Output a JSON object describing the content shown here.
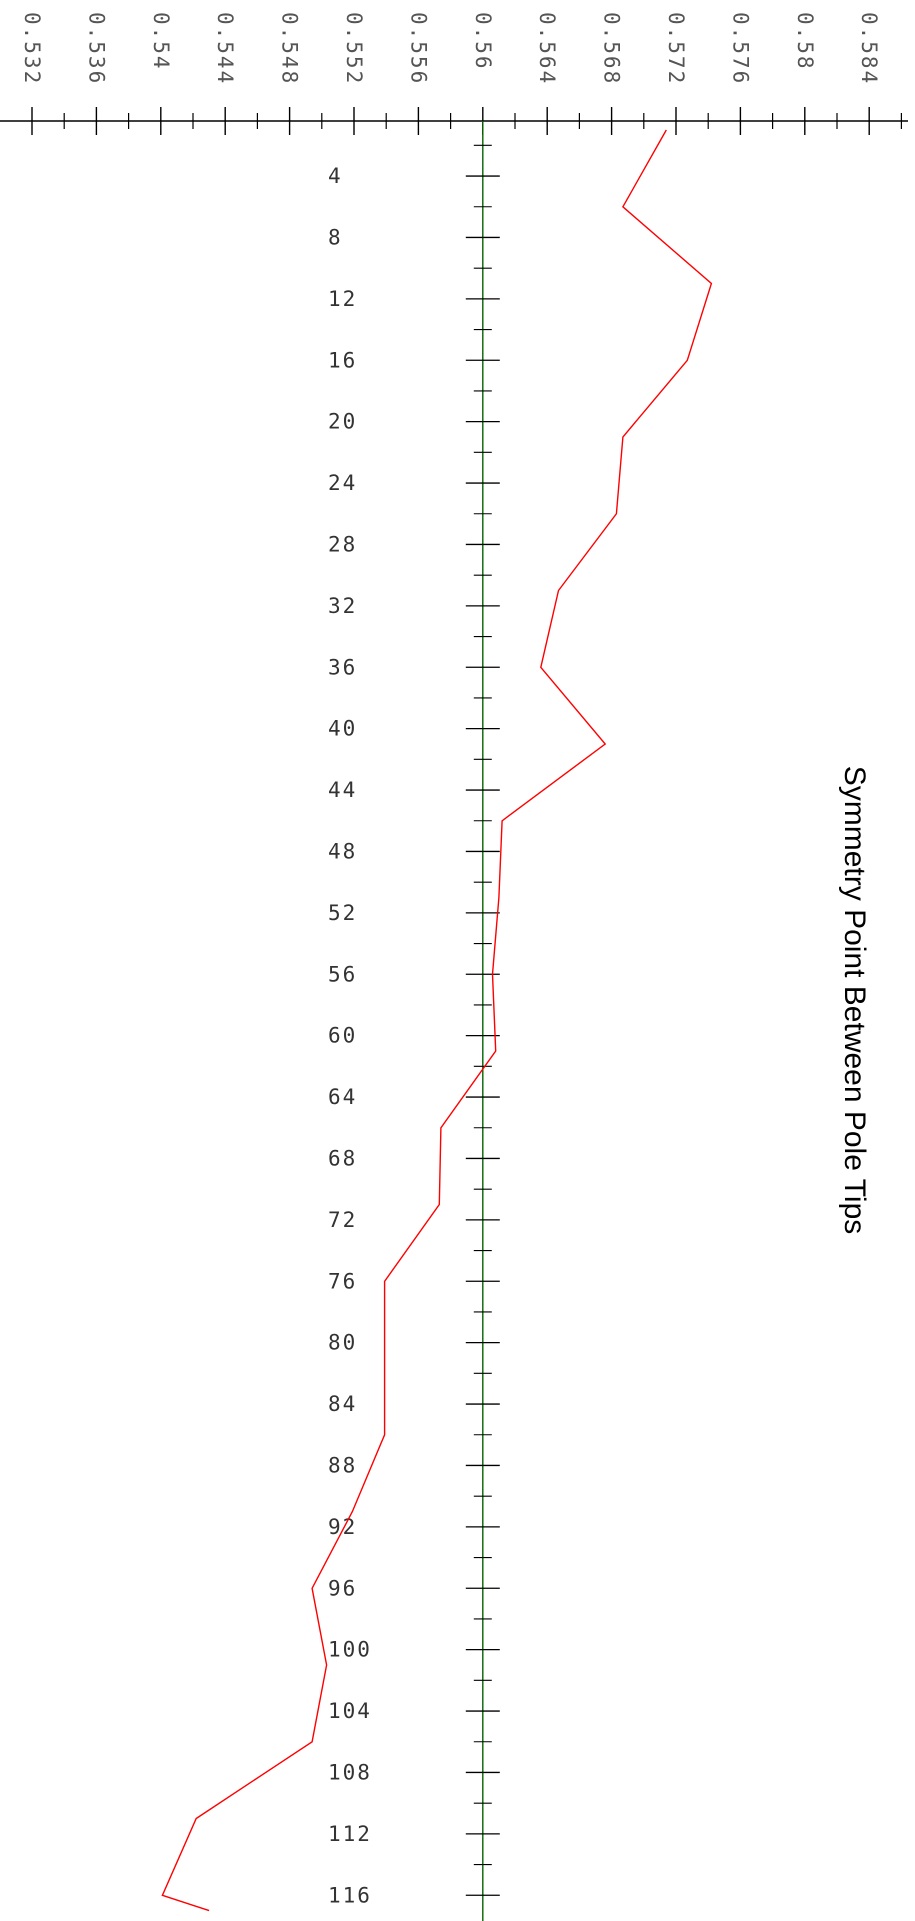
{
  "chart_data": {
    "type": "line",
    "title": "Symmetry Point Between Pole Tips",
    "orientation": "vertical-x-axis",
    "x_axis": {
      "ticks": [
        0.532,
        0.536,
        0.54,
        0.544,
        0.548,
        0.552,
        0.556,
        0.56,
        0.564,
        0.568,
        0.572,
        0.576,
        0.58,
        0.584
      ],
      "tick_labels": [
        "0.532",
        "0.536",
        "0.54",
        "0.544",
        "0.548",
        "0.552",
        "0.556",
        "0.56",
        "0.564",
        "0.568",
        "0.572",
        "0.576",
        "0.58",
        "0.584"
      ],
      "range": [
        0.532,
        0.584
      ]
    },
    "y_axis": {
      "ticks": [
        4,
        8,
        12,
        16,
        20,
        24,
        28,
        32,
        36,
        40,
        44,
        48,
        52,
        56,
        60,
        64,
        68,
        72,
        76,
        80,
        84,
        88,
        92,
        96,
        100,
        104,
        108,
        112,
        116
      ],
      "tick_labels": [
        "4",
        "8",
        "12",
        "16",
        "20",
        "24",
        "28",
        "32",
        "36",
        "40",
        "44",
        "48",
        "52",
        "56",
        "60",
        "64",
        "68",
        "72",
        "76",
        "80",
        "84",
        "88",
        "92",
        "96",
        "100",
        "104",
        "108",
        112,
        "116"
      ],
      "range": [
        0,
        117
      ],
      "axis_at_x": 0.56
    },
    "series": [
      {
        "color": "#ff0000",
        "points": [
          {
            "x": 0.5714,
            "y": 1
          },
          {
            "x": 0.5687,
            "y": 6
          },
          {
            "x": 0.5742,
            "y": 11
          },
          {
            "x": 0.5727,
            "y": 16
          },
          {
            "x": 0.5687,
            "y": 21
          },
          {
            "x": 0.5683,
            "y": 26
          },
          {
            "x": 0.5647,
            "y": 31
          },
          {
            "x": 0.5636,
            "y": 36
          },
          {
            "x": 0.5676,
            "y": 41
          },
          {
            "x": 0.5612,
            "y": 46
          },
          {
            "x": 0.561,
            "y": 51
          },
          {
            "x": 0.5606,
            "y": 56
          },
          {
            "x": 0.5608,
            "y": 61
          },
          {
            "x": 0.5574,
            "y": 66
          },
          {
            "x": 0.5573,
            "y": 71
          },
          {
            "x": 0.5539,
            "y": 76
          },
          {
            "x": 0.5539,
            "y": 81
          },
          {
            "x": 0.5539,
            "y": 86
          },
          {
            "x": 0.5519,
            "y": 91
          },
          {
            "x": 0.5494,
            "y": 96
          },
          {
            "x": 0.5503,
            "y": 101
          },
          {
            "x": 0.5494,
            "y": 106
          },
          {
            "x": 0.5422,
            "y": 111
          },
          {
            "x": 0.5401,
            "y": 116
          },
          {
            "x": 0.543,
            "y": 117
          }
        ]
      }
    ],
    "axis_colors": {
      "x_axis": "#000000",
      "y_axis": "#006400",
      "ticks": "#000000"
    },
    "grid": false
  }
}
